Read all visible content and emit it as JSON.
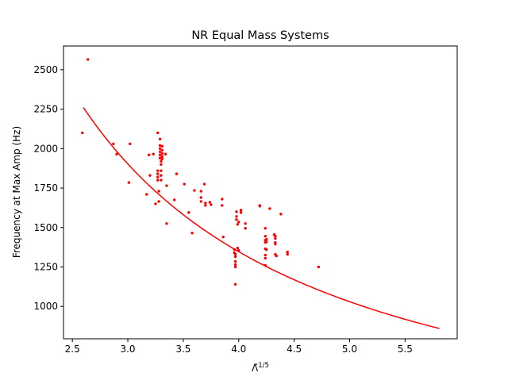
{
  "chart_data": {
    "type": "scatter",
    "title": "NR Equal Mass Systems",
    "xlabel_base": "Λ̃",
    "xlabel_exp": "1/5",
    "ylabel": "Frequency at Max Amp (Hz)",
    "xlim": [
      2.42,
      5.97
    ],
    "ylim": [
      795,
      2650
    ],
    "xticks": [
      2.5,
      3.0,
      3.5,
      4.0,
      4.5,
      5.0,
      5.5
    ],
    "xtick_labels": [
      "2.5",
      "3.0",
      "3.5",
      "4.0",
      "4.5",
      "5.0",
      "5.5"
    ],
    "yticks": [
      1000,
      1250,
      1500,
      1750,
      2000,
      2250,
      2500
    ],
    "ytick_labels": [
      "1000",
      "1250",
      "1500",
      "1750",
      "2000",
      "2250",
      "2500"
    ],
    "grid": false,
    "series": [
      {
        "kind": "scatter",
        "color": "#ff0000",
        "points": [
          [
            2.59,
            2100
          ],
          [
            2.64,
            2565
          ],
          [
            2.87,
            2030
          ],
          [
            2.9,
            1965
          ],
          [
            3.01,
            1785
          ],
          [
            3.02,
            2030
          ],
          [
            3.17,
            1710
          ],
          [
            3.19,
            1960
          ],
          [
            3.2,
            1830
          ],
          [
            3.23,
            1965
          ],
          [
            3.25,
            1650
          ],
          [
            3.27,
            2100
          ],
          [
            3.27,
            1860
          ],
          [
            3.27,
            1840
          ],
          [
            3.27,
            1820
          ],
          [
            3.27,
            1800
          ],
          [
            3.28,
            1665
          ],
          [
            3.28,
            1730
          ],
          [
            3.29,
            2060
          ],
          [
            3.29,
            2020
          ],
          [
            3.29,
            2000
          ],
          [
            3.29,
            1980
          ],
          [
            3.29,
            1960
          ],
          [
            3.29,
            1940
          ],
          [
            3.3,
            1920
          ],
          [
            3.3,
            1900
          ],
          [
            3.3,
            1860
          ],
          [
            3.3,
            1830
          ],
          [
            3.3,
            1800
          ],
          [
            3.31,
            2015
          ],
          [
            3.31,
            1990
          ],
          [
            3.31,
            1970
          ],
          [
            3.31,
            1950
          ],
          [
            3.31,
            1935
          ],
          [
            3.34,
            1965
          ],
          [
            3.35,
            1765
          ],
          [
            3.35,
            1525
          ],
          [
            3.42,
            1675
          ],
          [
            3.44,
            1840
          ],
          [
            3.51,
            1775
          ],
          [
            3.55,
            1595
          ],
          [
            3.58,
            1465
          ],
          [
            3.6,
            1735
          ],
          [
            3.66,
            1730
          ],
          [
            3.66,
            1690
          ],
          [
            3.66,
            1665
          ],
          [
            3.69,
            1775
          ],
          [
            3.7,
            1655
          ],
          [
            3.7,
            1640
          ],
          [
            3.74,
            1660
          ],
          [
            3.75,
            1645
          ],
          [
            3.85,
            1680
          ],
          [
            3.85,
            1640
          ],
          [
            3.86,
            1440
          ],
          [
            3.96,
            1360
          ],
          [
            3.96,
            1340
          ],
          [
            3.97,
            1140
          ],
          [
            3.97,
            1285
          ],
          [
            3.97,
            1265
          ],
          [
            3.97,
            1250
          ],
          [
            3.97,
            1330
          ],
          [
            3.97,
            1315
          ],
          [
            3.98,
            1600
          ],
          [
            3.98,
            1570
          ],
          [
            3.98,
            1550
          ],
          [
            3.99,
            1520
          ],
          [
            3.99,
            1370
          ],
          [
            4.0,
            1355
          ],
          [
            4.0,
            1535
          ],
          [
            4.02,
            1610
          ],
          [
            4.02,
            1595
          ],
          [
            4.06,
            1525
          ],
          [
            4.06,
            1495
          ],
          [
            4.19,
            1640
          ],
          [
            4.19,
            1635
          ],
          [
            4.24,
            1495
          ],
          [
            4.24,
            1445
          ],
          [
            4.24,
            1420
          ],
          [
            4.24,
            1405
          ],
          [
            4.24,
            1365
          ],
          [
            4.24,
            1325
          ],
          [
            4.24,
            1305
          ],
          [
            4.24,
            1260
          ],
          [
            4.25,
            1425
          ],
          [
            4.25,
            1410
          ],
          [
            4.25,
            1360
          ],
          [
            4.28,
            1620
          ],
          [
            4.32,
            1455
          ],
          [
            4.33,
            1445
          ],
          [
            4.33,
            1430
          ],
          [
            4.33,
            1405
          ],
          [
            4.33,
            1395
          ],
          [
            4.33,
            1330
          ],
          [
            4.34,
            1320
          ],
          [
            4.38,
            1585
          ],
          [
            4.44,
            1345
          ],
          [
            4.44,
            1330
          ],
          [
            4.72,
            1250
          ]
        ]
      },
      {
        "kind": "line",
        "color": "#ff0000",
        "curve": "power",
        "x_range": [
          2.6,
          5.81
        ],
        "points_fit": [
          [
            2.6,
            2260
          ],
          [
            3.0,
            1985
          ],
          [
            3.5,
            1715
          ],
          [
            4.0,
            1480
          ],
          [
            4.5,
            1270
          ],
          [
            5.0,
            1100
          ],
          [
            5.5,
            955
          ],
          [
            5.81,
            860
          ]
        ]
      }
    ]
  }
}
